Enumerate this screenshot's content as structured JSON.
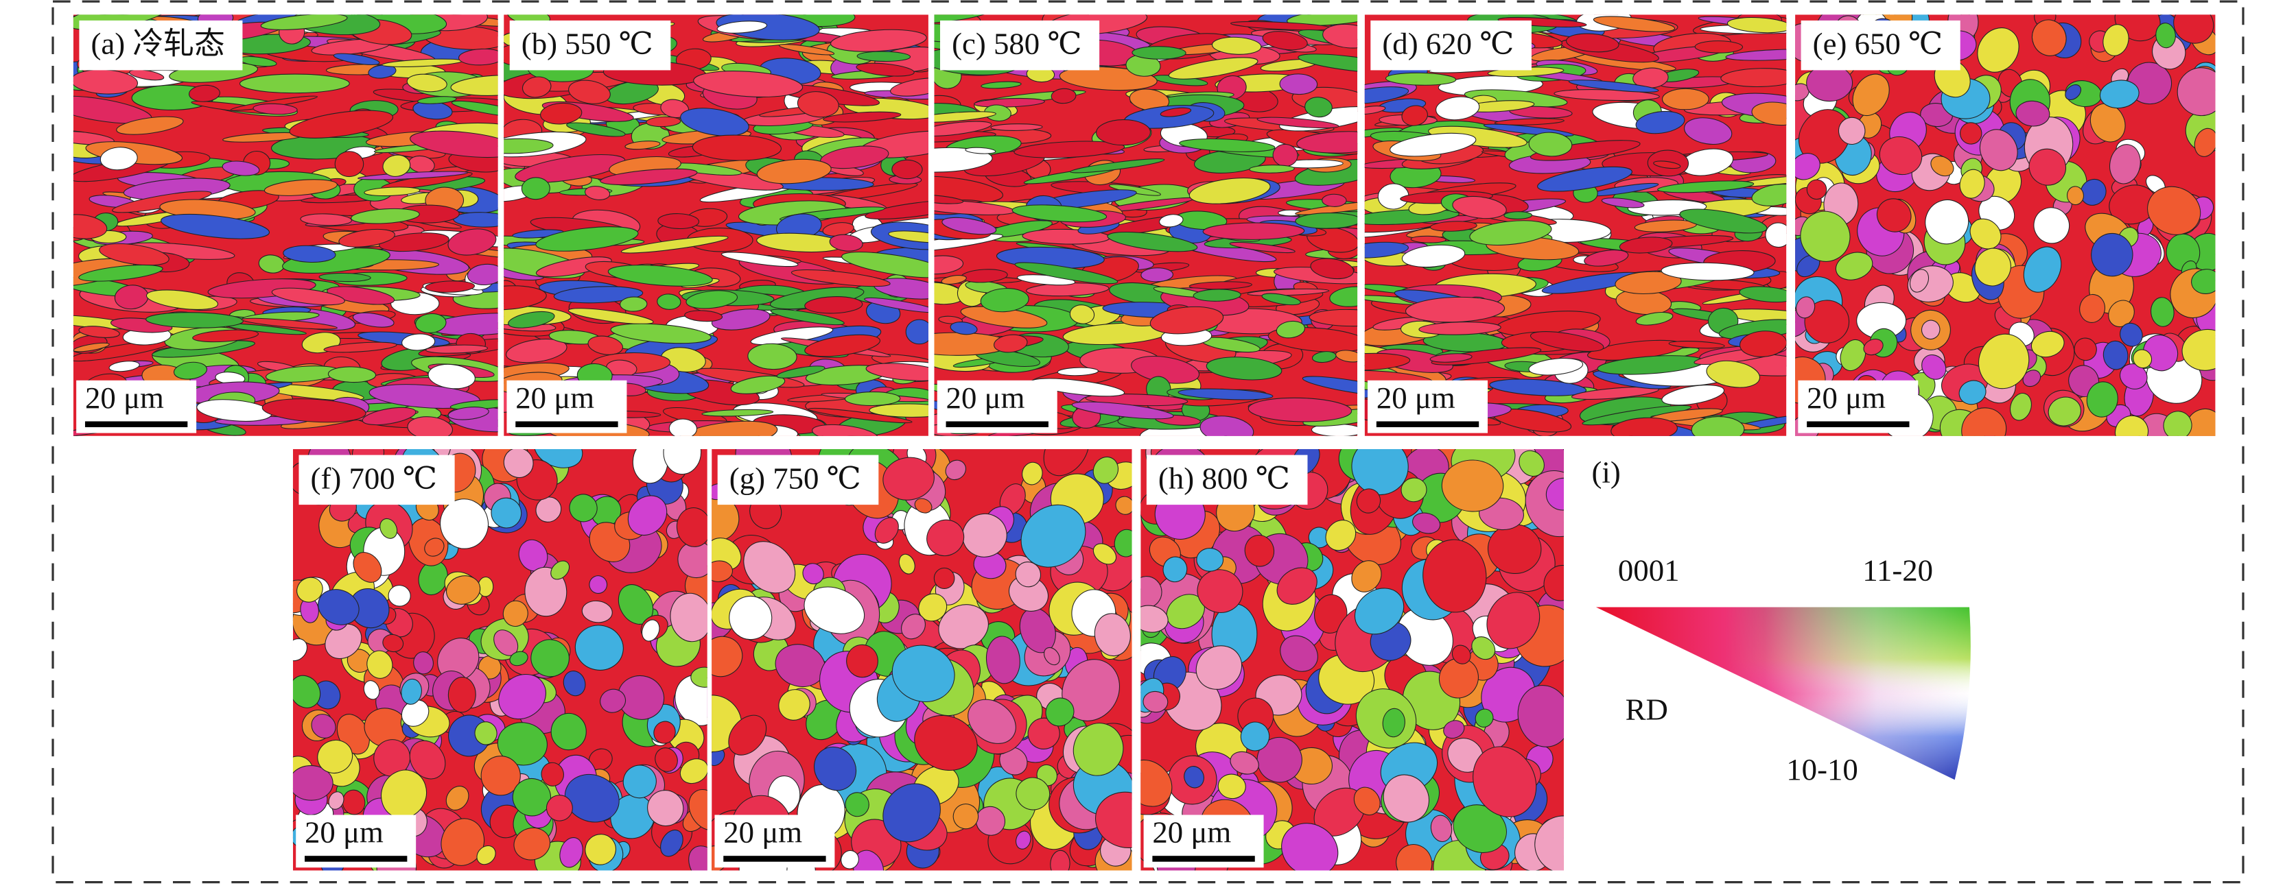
{
  "panels": [
    {
      "label": "(a) 冷轧态",
      "scale_bar": "20 μm"
    },
    {
      "label": "(b) 550 ℃",
      "scale_bar": "20 μm"
    },
    {
      "label": "(c) 580 ℃",
      "scale_bar": "20 μm"
    },
    {
      "label": "(d) 620 ℃",
      "scale_bar": "20 μm"
    },
    {
      "label": "(e) 650 ℃",
      "scale_bar": "20 μm"
    },
    {
      "label": "(f) 700 ℃",
      "scale_bar": "20 μm"
    },
    {
      "label": "(g) 750 ℃",
      "scale_bar": "20 μm"
    },
    {
      "label": "(h) 800 ℃",
      "scale_bar": "20 μm"
    }
  ],
  "legend": {
    "label": "(i)",
    "corner_0001": "0001",
    "corner_11_20": "11-20",
    "corner_10_10": "10-10",
    "direction": "RD"
  }
}
